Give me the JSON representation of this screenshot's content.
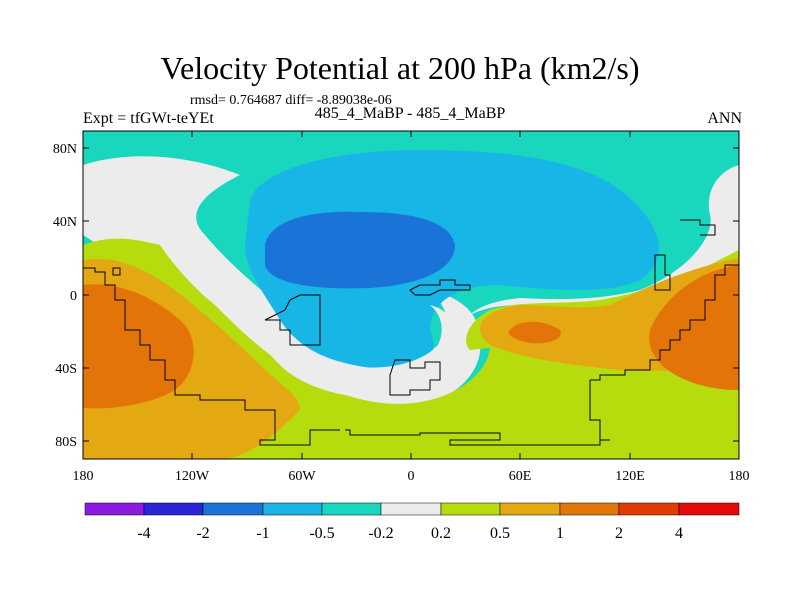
{
  "header": {
    "title": "Velocity Potential at 200 hPa (km2/s)",
    "stats": "rmsd= 0.764687 diff= -8.89038e-06",
    "expt": "Expt = tfGWt-teYEt",
    "case": "485_4_MaBP - 485_4_MaBP",
    "season": "ANN"
  },
  "axes": {
    "lat_labels": [
      "80N",
      "40N",
      "0",
      "40S",
      "80S"
    ],
    "lon_labels": [
      "180",
      "120W",
      "60W",
      "0",
      "60E",
      "120E",
      "180"
    ]
  },
  "colorbar": {
    "colors": [
      "#8a1be0",
      "#2b25d6",
      "#1a74d8",
      "#18b6e6",
      "#19d6bf",
      "#ececec",
      "#b6dc0e",
      "#e4a812",
      "#e37408",
      "#e23c05",
      "#e40b0b"
    ],
    "labels": [
      "-4",
      "-2",
      "-1",
      "-0.5",
      "-0.2",
      "0.2",
      "0.5",
      "1",
      "2",
      "4"
    ]
  },
  "map_colors": {
    "teal": "#19d6bf",
    "cyan": "#18b6e6",
    "blue": "#1a74d8",
    "white": "#ececec",
    "lime": "#b6dc0e",
    "gold": "#e4a812",
    "orange": "#e37408",
    "coast": "#000000"
  }
}
